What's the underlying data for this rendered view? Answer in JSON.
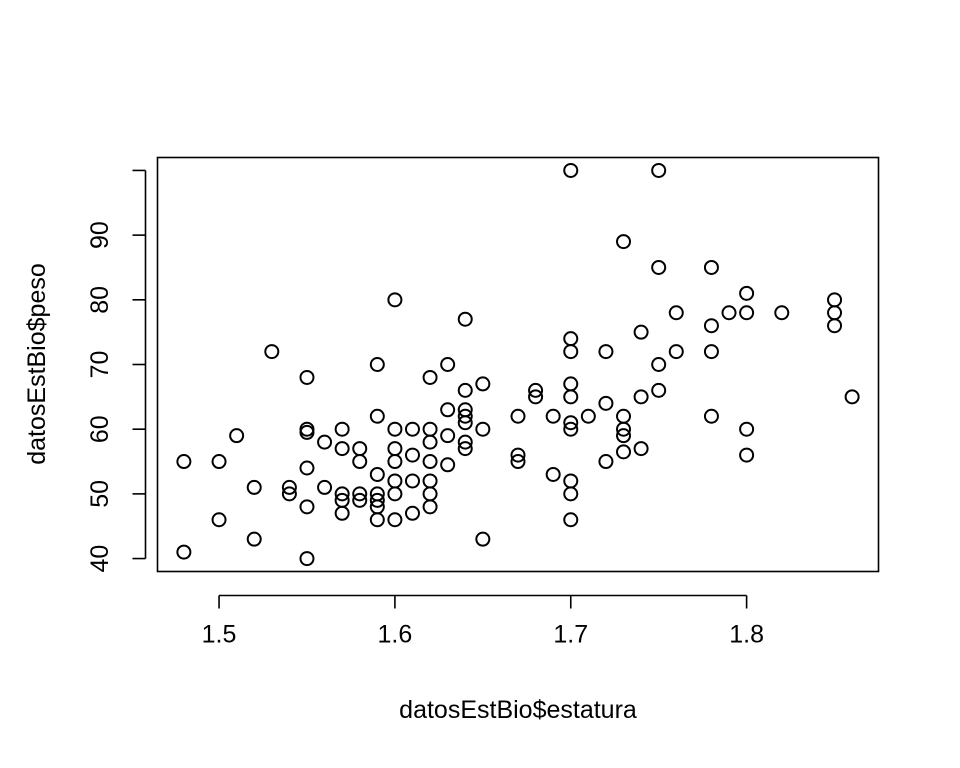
{
  "chart_data": {
    "type": "scatter",
    "title": "",
    "xlabel": "datosEstBio$estatura",
    "ylabel": "datosEstBio$peso",
    "xlim": [
      1.465,
      1.875
    ],
    "ylim": [
      38.0,
      102.0
    ],
    "x_ticks": [
      1.5,
      1.6,
      1.7,
      1.8
    ],
    "x_tick_labels": [
      "1.5",
      "1.6",
      "1.7",
      "1.8"
    ],
    "y_ticks": [
      40,
      50,
      60,
      70,
      80,
      90
    ],
    "y_tick_labels": [
      "40",
      "50",
      "60",
      "70",
      "80",
      "90"
    ],
    "extra_y_ticks": [
      100
    ],
    "grid": false,
    "marker": "open-circle",
    "colors": {
      "marker": "#000000",
      "frame": "#000000",
      "background": "#ffffff"
    },
    "points": [
      {
        "x": 1.48,
        "y": 55
      },
      {
        "x": 1.48,
        "y": 41
      },
      {
        "x": 1.5,
        "y": 55
      },
      {
        "x": 1.5,
        "y": 46
      },
      {
        "x": 1.51,
        "y": 59
      },
      {
        "x": 1.52,
        "y": 51
      },
      {
        "x": 1.52,
        "y": 43
      },
      {
        "x": 1.53,
        "y": 72
      },
      {
        "x": 1.54,
        "y": 51
      },
      {
        "x": 1.54,
        "y": 50
      },
      {
        "x": 1.55,
        "y": 68
      },
      {
        "x": 1.55,
        "y": 60
      },
      {
        "x": 1.55,
        "y": 59.5
      },
      {
        "x": 1.55,
        "y": 54
      },
      {
        "x": 1.55,
        "y": 48
      },
      {
        "x": 1.55,
        "y": 40
      },
      {
        "x": 1.56,
        "y": 58
      },
      {
        "x": 1.56,
        "y": 51
      },
      {
        "x": 1.57,
        "y": 60
      },
      {
        "x": 1.57,
        "y": 57
      },
      {
        "x": 1.57,
        "y": 50
      },
      {
        "x": 1.57,
        "y": 49
      },
      {
        "x": 1.57,
        "y": 47
      },
      {
        "x": 1.58,
        "y": 57
      },
      {
        "x": 1.58,
        "y": 55
      },
      {
        "x": 1.58,
        "y": 50
      },
      {
        "x": 1.58,
        "y": 49
      },
      {
        "x": 1.59,
        "y": 70
      },
      {
        "x": 1.59,
        "y": 62
      },
      {
        "x": 1.59,
        "y": 53
      },
      {
        "x": 1.59,
        "y": 50
      },
      {
        "x": 1.59,
        "y": 49
      },
      {
        "x": 1.59,
        "y": 48
      },
      {
        "x": 1.59,
        "y": 46
      },
      {
        "x": 1.6,
        "y": 80
      },
      {
        "x": 1.6,
        "y": 60
      },
      {
        "x": 1.6,
        "y": 57
      },
      {
        "x": 1.6,
        "y": 55
      },
      {
        "x": 1.6,
        "y": 52
      },
      {
        "x": 1.6,
        "y": 50
      },
      {
        "x": 1.6,
        "y": 46
      },
      {
        "x": 1.61,
        "y": 60
      },
      {
        "x": 1.61,
        "y": 56
      },
      {
        "x": 1.61,
        "y": 52
      },
      {
        "x": 1.61,
        "y": 47
      },
      {
        "x": 1.62,
        "y": 68
      },
      {
        "x": 1.62,
        "y": 60
      },
      {
        "x": 1.62,
        "y": 58
      },
      {
        "x": 1.62,
        "y": 55
      },
      {
        "x": 1.62,
        "y": 52
      },
      {
        "x": 1.62,
        "y": 50
      },
      {
        "x": 1.62,
        "y": 48
      },
      {
        "x": 1.63,
        "y": 70
      },
      {
        "x": 1.63,
        "y": 63
      },
      {
        "x": 1.63,
        "y": 59
      },
      {
        "x": 1.63,
        "y": 54.5
      },
      {
        "x": 1.64,
        "y": 77
      },
      {
        "x": 1.64,
        "y": 66
      },
      {
        "x": 1.64,
        "y": 63
      },
      {
        "x": 1.64,
        "y": 62
      },
      {
        "x": 1.64,
        "y": 61
      },
      {
        "x": 1.64,
        "y": 58
      },
      {
        "x": 1.64,
        "y": 57
      },
      {
        "x": 1.65,
        "y": 67
      },
      {
        "x": 1.65,
        "y": 60
      },
      {
        "x": 1.65,
        "y": 43
      },
      {
        "x": 1.67,
        "y": 62
      },
      {
        "x": 1.67,
        "y": 56
      },
      {
        "x": 1.67,
        "y": 55
      },
      {
        "x": 1.68,
        "y": 66
      },
      {
        "x": 1.68,
        "y": 65
      },
      {
        "x": 1.69,
        "y": 62
      },
      {
        "x": 1.69,
        "y": 53
      },
      {
        "x": 1.7,
        "y": 100
      },
      {
        "x": 1.7,
        "y": 74
      },
      {
        "x": 1.7,
        "y": 72
      },
      {
        "x": 1.7,
        "y": 67
      },
      {
        "x": 1.7,
        "y": 65
      },
      {
        "x": 1.7,
        "y": 61
      },
      {
        "x": 1.7,
        "y": 60
      },
      {
        "x": 1.7,
        "y": 52
      },
      {
        "x": 1.7,
        "y": 50
      },
      {
        "x": 1.7,
        "y": 46
      },
      {
        "x": 1.71,
        "y": 62
      },
      {
        "x": 1.72,
        "y": 72
      },
      {
        "x": 1.72,
        "y": 64
      },
      {
        "x": 1.72,
        "y": 55
      },
      {
        "x": 1.73,
        "y": 89
      },
      {
        "x": 1.73,
        "y": 62
      },
      {
        "x": 1.73,
        "y": 60
      },
      {
        "x": 1.73,
        "y": 59
      },
      {
        "x": 1.73,
        "y": 56.5
      },
      {
        "x": 1.74,
        "y": 75
      },
      {
        "x": 1.74,
        "y": 65
      },
      {
        "x": 1.74,
        "y": 57
      },
      {
        "x": 1.75,
        "y": 100
      },
      {
        "x": 1.75,
        "y": 85
      },
      {
        "x": 1.75,
        "y": 70
      },
      {
        "x": 1.75,
        "y": 66
      },
      {
        "x": 1.76,
        "y": 78
      },
      {
        "x": 1.76,
        "y": 72
      },
      {
        "x": 1.78,
        "y": 85
      },
      {
        "x": 1.78,
        "y": 76
      },
      {
        "x": 1.78,
        "y": 72
      },
      {
        "x": 1.78,
        "y": 62
      },
      {
        "x": 1.79,
        "y": 78
      },
      {
        "x": 1.8,
        "y": 81
      },
      {
        "x": 1.8,
        "y": 78
      },
      {
        "x": 1.8,
        "y": 60
      },
      {
        "x": 1.8,
        "y": 56
      },
      {
        "x": 1.82,
        "y": 78
      },
      {
        "x": 1.85,
        "y": 80
      },
      {
        "x": 1.85,
        "y": 78
      },
      {
        "x": 1.85,
        "y": 76
      },
      {
        "x": 1.86,
        "y": 65
      }
    ]
  }
}
